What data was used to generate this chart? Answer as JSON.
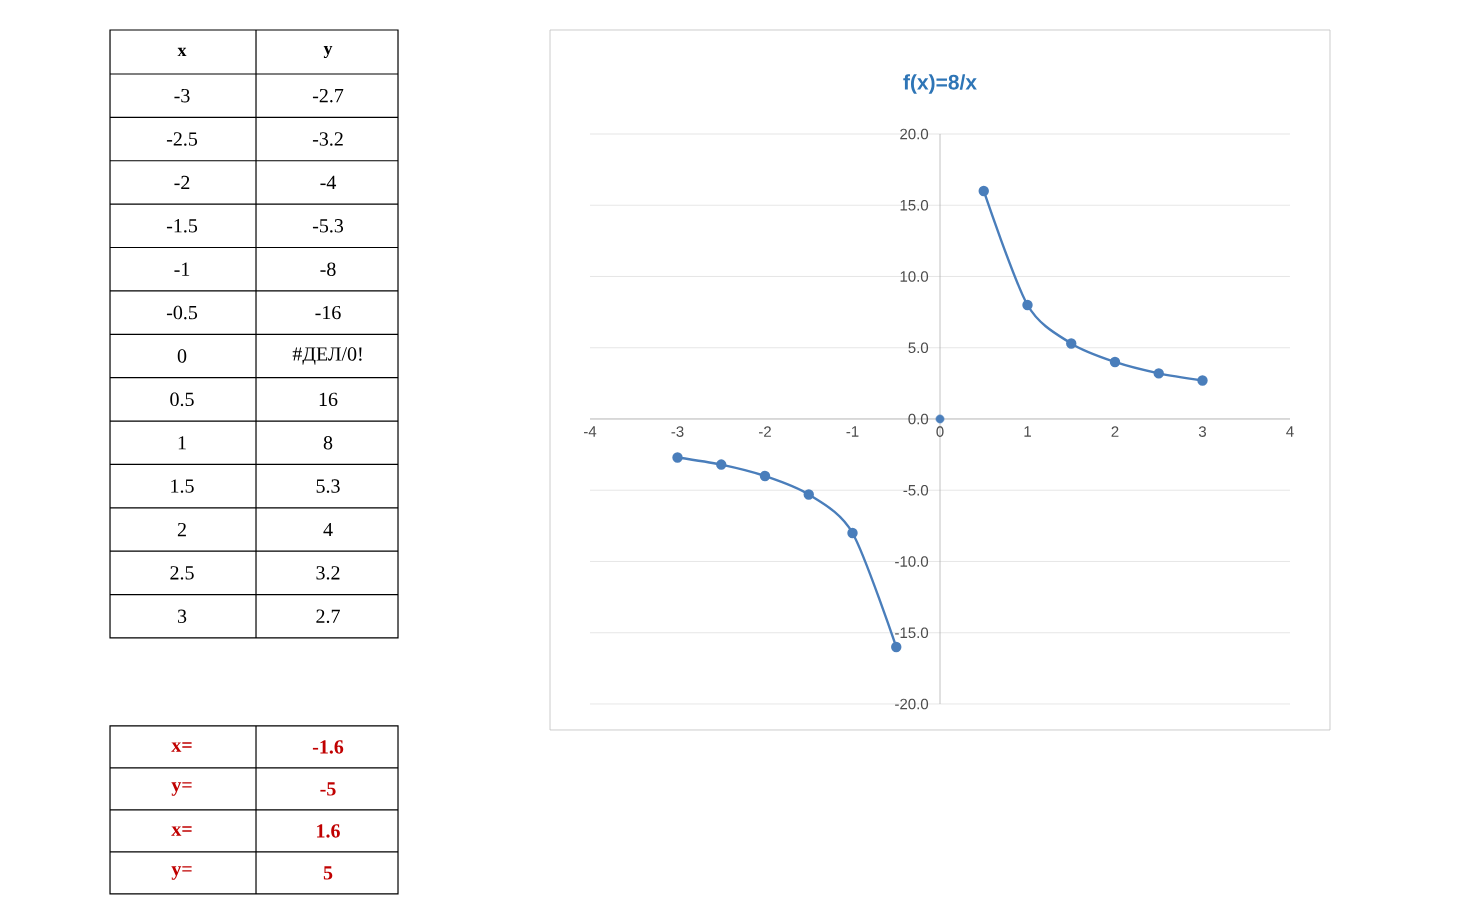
{
  "chart_data": {
    "type": "line",
    "title": "f(x)=8/x",
    "marker": "circle",
    "grid": "y",
    "xlim": [
      -4,
      4
    ],
    "xticks": [
      -4,
      -3,
      -2,
      -1,
      0,
      1,
      2,
      3,
      4
    ],
    "ylim": [
      -20,
      20
    ],
    "yticks": [
      {
        "value": -20,
        "label": "-20.0"
      },
      {
        "value": -15,
        "label": "-15.0"
      },
      {
        "value": -10,
        "label": "-10.0"
      },
      {
        "value": -5,
        "label": "-5.0"
      },
      {
        "value": 0,
        "label": "0.0"
      },
      {
        "value": 5,
        "label": "5.0"
      },
      {
        "value": 10,
        "label": "10.0"
      },
      {
        "value": 15,
        "label": "15.0"
      },
      {
        "value": 20,
        "label": "20.0"
      }
    ],
    "series": [
      {
        "color": "#4a7ebb",
        "x": [
          -3,
          -2.5,
          -2,
          -1.5,
          -1,
          -0.5,
          0,
          0.5,
          1,
          1.5,
          2,
          2.5,
          3
        ],
        "values": [
          -2.7,
          -3.2,
          -4,
          -5.3,
          -8,
          -16,
          null,
          16,
          8,
          5.3,
          4,
          3.2,
          2.7
        ]
      },
      {
        "type": "scatter",
        "color": "#4a7ebb",
        "x": [
          0
        ],
        "values": [
          0
        ]
      }
    ],
    "annotations": [
      "x",
      "y",
      "-3",
      "-2.7",
      "-2.5",
      "-3.2",
      "-2",
      "-4",
      "-1.5",
      "-5.3",
      "-1",
      "-8",
      "-0.5",
      "-16",
      "0",
      "#ДЕЛ/0!",
      "0.5",
      "16",
      "1",
      "8",
      "1.5",
      "5.3",
      "2",
      "4",
      "2.5",
      "3.2",
      "3",
      "2.7",
      "x=",
      "-1.6",
      "y=",
      "-5",
      "x=",
      "1.6",
      "y=",
      "5"
    ]
  }
}
